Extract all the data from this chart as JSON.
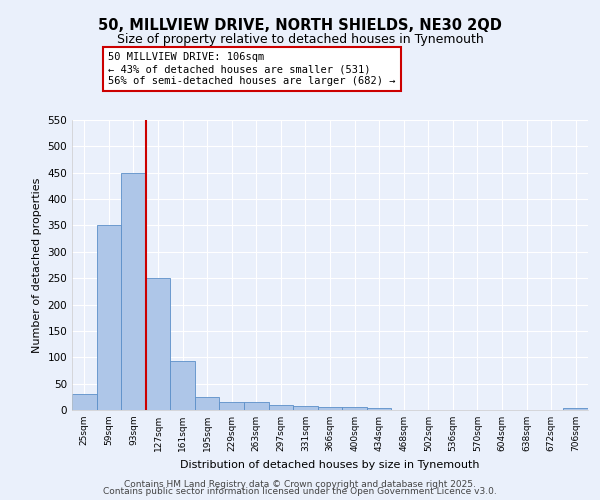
{
  "title_line1": "50, MILLVIEW DRIVE, NORTH SHIELDS, NE30 2QD",
  "title_line2": "Size of property relative to detached houses in Tynemouth",
  "xlabel": "Distribution of detached houses by size in Tynemouth",
  "ylabel": "Number of detached properties",
  "bin_labels": [
    "25sqm",
    "59sqm",
    "93sqm",
    "127sqm",
    "161sqm",
    "195sqm",
    "229sqm",
    "263sqm",
    "297sqm",
    "331sqm",
    "366sqm",
    "400sqm",
    "434sqm",
    "468sqm",
    "502sqm",
    "536sqm",
    "570sqm",
    "604sqm",
    "638sqm",
    "672sqm",
    "706sqm"
  ],
  "bin_values": [
    30,
    350,
    450,
    250,
    93,
    25,
    15,
    15,
    10,
    8,
    5,
    5,
    3,
    0,
    0,
    0,
    0,
    0,
    0,
    0,
    3
  ],
  "bar_color": "#aec6e8",
  "bar_edge_color": "#5b8fc9",
  "red_line_x": 2.5,
  "annotation_text": "50 MILLVIEW DRIVE: 106sqm\n← 43% of detached houses are smaller (531)\n56% of semi-detached houses are larger (682) →",
  "annotation_box_color": "#ffffff",
  "annotation_box_edge": "#cc0000",
  "ylim": [
    0,
    550
  ],
  "yticks": [
    0,
    50,
    100,
    150,
    200,
    250,
    300,
    350,
    400,
    450,
    500,
    550
  ],
  "footer_line1": "Contains HM Land Registry data © Crown copyright and database right 2025.",
  "footer_line2": "Contains public sector information licensed under the Open Government Licence v3.0.",
  "bg_color": "#eaf0fb",
  "grid_color": "#ffffff",
  "title_fontsize": 10.5,
  "subtitle_fontsize": 9,
  "footer_fontsize": 6.5
}
